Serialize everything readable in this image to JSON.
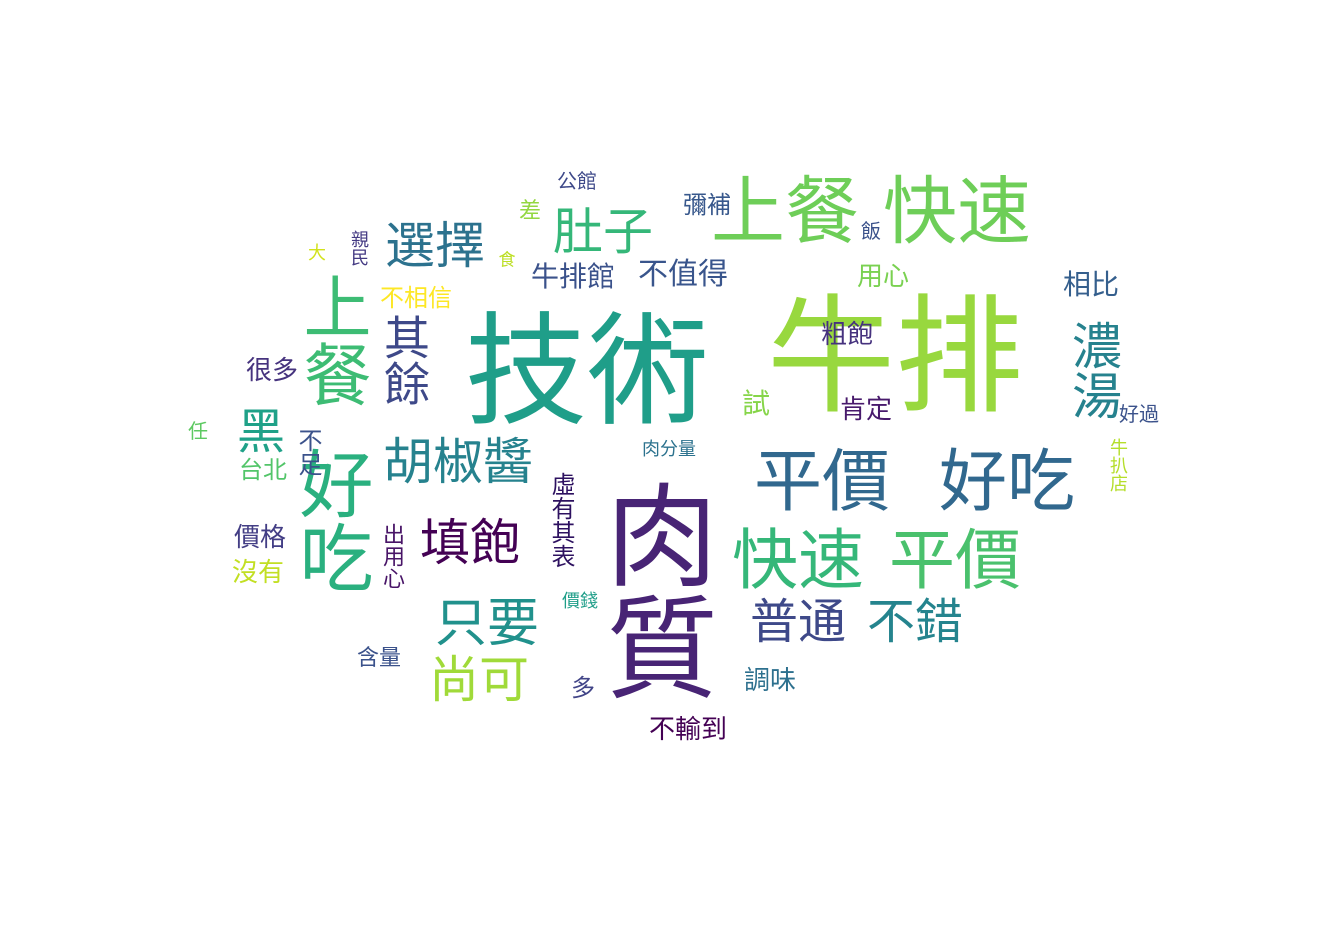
{
  "words": [
    {
      "text": "牛排",
      "color": "#98d83e"
    },
    {
      "text": "技術",
      "color": "#1f9e89"
    },
    {
      "text": "肉質",
      "color": "#482475"
    },
    {
      "text": "好吃",
      "color": "#2ab07f"
    },
    {
      "text": "上餐",
      "color": "#3dbc74"
    },
    {
      "text": "快速",
      "color": "#6ece58"
    },
    {
      "text": "上餐",
      "color": "#6ece58"
    },
    {
      "text": "平價",
      "color": "#31688e"
    },
    {
      "text": "好吃",
      "color": "#31688e"
    },
    {
      "text": "快速",
      "color": "#35b779"
    },
    {
      "text": "平價",
      "color": "#4ac16d"
    },
    {
      "text": "胡椒醬",
      "color": "#26828e"
    },
    {
      "text": "選擇",
      "color": "#2c728e"
    },
    {
      "text": "肚子",
      "color": "#35b779"
    },
    {
      "text": "其餘",
      "color": "#3e4989"
    },
    {
      "text": "濃湯",
      "color": "#26828e"
    },
    {
      "text": "黑",
      "color": "#1fa188"
    },
    {
      "text": "填飽",
      "color": "#440154"
    },
    {
      "text": "只要",
      "color": "#21918c"
    },
    {
      "text": "尚可",
      "color": "#a0da39"
    },
    {
      "text": "普通",
      "color": "#3e4989"
    },
    {
      "text": "不錯",
      "color": "#25848e"
    },
    {
      "text": "不值得",
      "color": "#39558c"
    },
    {
      "text": "牛排館",
      "color": "#3b528b"
    },
    {
      "text": "相比",
      "color": "#355f8d"
    },
    {
      "text": "用心",
      "color": "#7ad151"
    },
    {
      "text": "粗飽",
      "color": "#46327e"
    },
    {
      "text": "肯定",
      "color": "#481a6c"
    },
    {
      "text": "很多",
      "color": "#46337e"
    },
    {
      "text": "不相信",
      "color": "#fde725"
    },
    {
      "text": "不足",
      "color": "#3b528b"
    },
    {
      "text": "台北",
      "color": "#52c569"
    },
    {
      "text": "價格",
      "color": "#433e85"
    },
    {
      "text": "沒有",
      "color": "#c2df23"
    },
    {
      "text": "虛有其表",
      "color": "#2d1160"
    },
    {
      "text": "出用心",
      "color": "#481467"
    },
    {
      "text": "價錢",
      "color": "#1f9e89"
    },
    {
      "text": "含量",
      "color": "#3b528b"
    },
    {
      "text": "多",
      "color": "#414487"
    },
    {
      "text": "不輸到",
      "color": "#440154"
    },
    {
      "text": "調味",
      "color": "#2d708e"
    },
    {
      "text": "肉分量",
      "color": "#2c728e"
    },
    {
      "text": "試",
      "color": "#86d549"
    },
    {
      "text": "好過",
      "color": "#3b528b"
    },
    {
      "text": "牛扒店",
      "color": "#b5de2b"
    },
    {
      "text": "任",
      "color": "#5ec962"
    },
    {
      "text": "大",
      "color": "#d2e21b"
    },
    {
      "text": "親民",
      "color": "#443a83"
    },
    {
      "text": "食",
      "color": "#bddf26"
    },
    {
      "text": "差",
      "color": "#93d741"
    },
    {
      "text": "公館",
      "color": "#3e4989"
    },
    {
      "text": "彌補",
      "color": "#38588c"
    },
    {
      "text": "飯",
      "color": "#3b528b"
    }
  ]
}
